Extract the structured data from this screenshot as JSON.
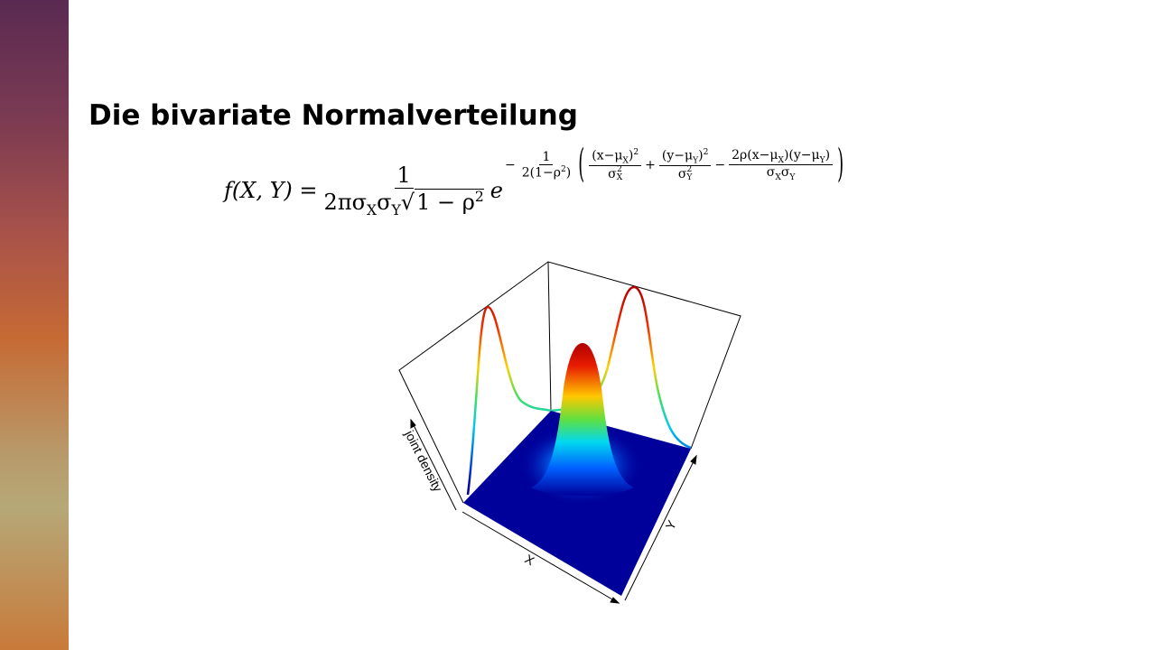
{
  "title": "Die bivariate Normalverteilung",
  "formula": {
    "lhs": "f(X, Y) =",
    "coef": {
      "num": "1",
      "den": {
        "a": "2πσ",
        "a_sub": "X",
        "b": "σ",
        "b_sub": "Y",
        "radicand": "1 − ρ",
        "radicand_sup": "2"
      }
    },
    "base": "e",
    "exponent": {
      "sign": "−",
      "num": "1",
      "den": "2(1−ρ",
      "den_sup": "2",
      "den_close": ")",
      "open": "(",
      "t1_num": "(x−μ",
      "t1_num_sub": "X",
      "t1_num_close": ")",
      "t1_num_sup": "2",
      "t1_den": "σ",
      "t1_den_sup": "2",
      "t1_den_sub": "X",
      "plus": "+",
      "t2_num": "(y−μ",
      "t2_num_sub": "Y",
      "t2_num_close": ")",
      "t2_num_sup": "2",
      "t2_den": "σ",
      "t2_den_sup": "2",
      "t2_den_sub": "Y",
      "minus": "−",
      "t3_num": "2ρ(x−μ",
      "t3_num_sub1": "X",
      "t3_num_mid": ")(y−μ",
      "t3_num_sub2": "Y",
      "t3_num_close": ")",
      "t3_den_a": "σ",
      "t3_den_a_sub": "X",
      "t3_den_b": "σ",
      "t3_den_b_sub": "Y",
      "close": ")"
    }
  },
  "plot": {
    "z_label": "joint density",
    "x_label": "X",
    "y_label": "Y"
  }
}
